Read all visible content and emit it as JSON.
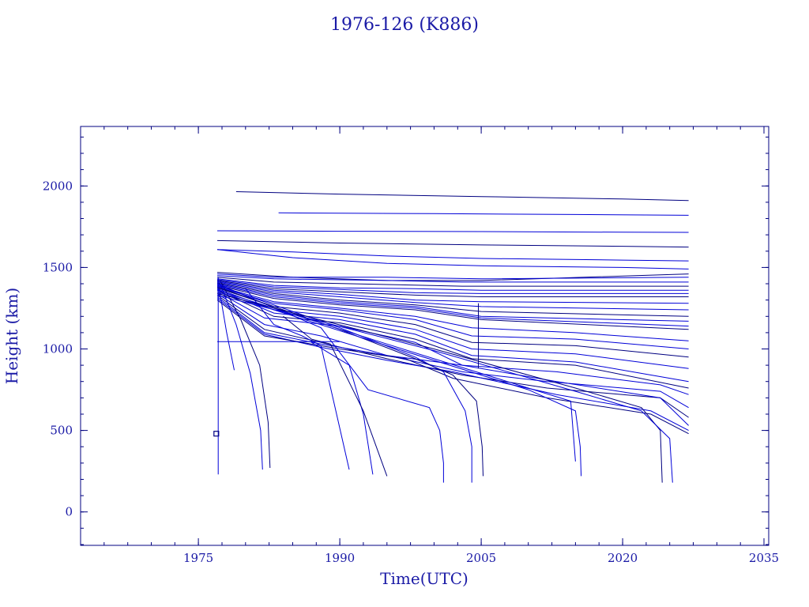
{
  "chart_data": {
    "type": "line",
    "title": "1976-126 (K886)",
    "xlabel": "Time(UTC)",
    "ylabel": "Height (km)",
    "xlim": [
      1962.5,
      2035.5
    ],
    "ylim": [
      -205,
      2365
    ],
    "x_ticks": [
      1975,
      1990,
      2005,
      2020,
      2035
    ],
    "y_ticks": [
      0,
      500,
      1000,
      1500,
      2000
    ],
    "x_minor_step": 2.5,
    "y_minor_step": 100,
    "grid": false,
    "legend": "none",
    "colors": {
      "axes": "#000080",
      "text": "#1a1aa6",
      "lines": "#0000d8",
      "lines_dark": "#000080"
    },
    "series": [
      {
        "x": [
          1979.0,
          1990.0,
          2005.0,
          2020.0,
          2027.0
        ],
        "y": [
          1965,
          1950,
          1935,
          1920,
          1910
        ]
      },
      {
        "x": [
          1983.5,
          2000.0,
          2015.0,
          2027.0
        ],
        "y": [
          1835,
          1830,
          1825,
          1820
        ]
      },
      {
        "x": [
          1977.0,
          1990.0,
          2005.0,
          2020.0,
          2027.0
        ],
        "y": [
          1725,
          1722,
          1720,
          1716,
          1715
        ]
      },
      {
        "x": [
          1977.0,
          1990.0,
          2005.0,
          2020.0,
          2027.0
        ],
        "y": [
          1665,
          1650,
          1638,
          1630,
          1625
        ]
      },
      {
        "x": [
          1977.0,
          1985.0,
          1995.0,
          2005.0,
          2020.0,
          2027.0
        ],
        "y": [
          1610,
          1595,
          1570,
          1555,
          1545,
          1540
        ]
      },
      {
        "x": [
          1977.0,
          1985.0,
          1995.0,
          2005.0,
          2020.0,
          2027.0
        ],
        "y": [
          1610,
          1560,
          1525,
          1510,
          1500,
          1490
        ]
      },
      {
        "x": [
          1977.0,
          1985.0,
          1995.0,
          2005.0,
          2027.0
        ],
        "y": [
          1470,
          1440,
          1420,
          1420,
          1460
        ]
      },
      {
        "x": [
          1977.0,
          1983.0,
          1995.0,
          2005.0,
          2027.0
        ],
        "y": [
          1460,
          1440,
          1440,
          1430,
          1440
        ]
      },
      {
        "x": [
          1977.0,
          1983.0,
          1995.0,
          2003.0,
          2027.0
        ],
        "y": [
          1450,
          1430,
          1420,
          1410,
          1410
        ]
      },
      {
        "x": [
          1977.0,
          1983.0,
          1995.0,
          2003.0,
          2027.0
        ],
        "y": [
          1440,
          1410,
          1395,
          1385,
          1385
        ]
      },
      {
        "x": [
          1977.0,
          1983.0,
          1990.0,
          1998.0,
          2005.0,
          2027.0
        ],
        "y": [
          1430,
          1390,
          1375,
          1370,
          1360,
          1360
        ]
      },
      {
        "x": [
          1977.0,
          1983.0,
          1990.0,
          1998.0,
          2005.0,
          2027.0
        ],
        "y": [
          1425,
          1380,
          1365,
          1345,
          1340,
          1340
        ]
      },
      {
        "x": [
          1977.0,
          1983.0,
          1990.0,
          1998.0,
          2005.0,
          2027.0
        ],
        "y": [
          1420,
          1370,
          1350,
          1330,
          1320,
          1320
        ]
      },
      {
        "x": [
          1977.0,
          1983.0,
          1990.0,
          1998.0,
          2005.0,
          2027.0
        ],
        "y": [
          1415,
          1360,
          1335,
          1300,
          1290,
          1280
        ]
      },
      {
        "x": [
          1977.0,
          1983.0,
          1990.0,
          1998.0,
          2005.0,
          2027.0
        ],
        "y": [
          1410,
          1350,
          1320,
          1285,
          1260,
          1240
        ]
      },
      {
        "x": [
          1977.0,
          1983.0,
          1990.0,
          1998.0,
          2005.0,
          2027.0
        ],
        "y": [
          1405,
          1340,
          1300,
          1270,
          1230,
          1200
        ]
      },
      {
        "x": [
          1977.0,
          1983.0,
          1990.0,
          1998.0,
          2005.0,
          2027.0
        ],
        "y": [
          1400,
          1330,
          1290,
          1260,
          1200,
          1170
        ]
      },
      {
        "x": [
          1977.0,
          1983.0,
          1990.0,
          1998.0,
          2005.0,
          2027.0
        ],
        "y": [
          1395,
          1320,
          1280,
          1250,
          1190,
          1140
        ]
      },
      {
        "x": [
          1977.0,
          1983.0,
          1990.0,
          1998.0,
          2005.0,
          2027.0
        ],
        "y": [
          1390,
          1310,
          1270,
          1240,
          1180,
          1120
        ]
      },
      {
        "x": [
          1977.0,
          1983.0,
          1990.0,
          1998.0,
          2004.0,
          2015.0,
          2027.0
        ],
        "y": [
          1385,
          1290,
          1250,
          1200,
          1130,
          1100,
          1050
        ]
      },
      {
        "x": [
          1977.0,
          1983.0,
          1990.0,
          1998.0,
          2004.0,
          2015.0,
          2027.0
        ],
        "y": [
          1380,
          1280,
          1240,
          1180,
          1080,
          1060,
          1000
        ]
      },
      {
        "x": [
          1977.0,
          1983.0,
          1990.0,
          1998.0,
          2004.0,
          2015.0,
          2027.0
        ],
        "y": [
          1375,
          1260,
          1220,
          1150,
          1040,
          1020,
          950
        ]
      },
      {
        "x": [
          1977.0,
          1983.0,
          1990.0,
          1998.0,
          2004.0,
          2015.0,
          2027.0
        ],
        "y": [
          1370,
          1240,
          1200,
          1120,
          1000,
          970,
          880
        ]
      },
      {
        "x": [
          1977.0,
          1983.0,
          1990.0,
          1998.0,
          2004.0,
          2015.0,
          2027.0
        ],
        "y": [
          1365,
          1220,
          1180,
          1090,
          960,
          920,
          800
        ]
      },
      {
        "x": [
          1977.0,
          1983.0,
          1990.0,
          1998.0,
          2004.0,
          2015.0,
          2027.0
        ],
        "y": [
          1360,
          1200,
          1160,
          1060,
          940,
          900,
          760
        ]
      },
      {
        "x": [
          1977.0,
          1982.0,
          1990.0,
          1998.0,
          2003.0,
          2013.0,
          2024.0,
          2027.0
        ],
        "y": [
          1350,
          1190,
          1140,
          1040,
          900,
          860,
          780,
          720
        ]
      },
      {
        "x": [
          1977.0,
          1982.0,
          1988.0,
          1995.0,
          2003.0,
          2012.0,
          2024.0,
          2027.0
        ],
        "y": [
          1340,
          1150,
          1080,
          960,
          860,
          800,
          740,
          640
        ]
      },
      {
        "x": [
          1977.0,
          1982.0,
          1988.0,
          1995.0,
          2003.0,
          2012.0,
          2024.0,
          2027.0
        ],
        "y": [
          1330,
          1120,
          1040,
          940,
          840,
          760,
          700,
          580
        ]
      },
      {
        "x": [
          1977.0,
          1982.0,
          1988.0,
          1995.0,
          2003.0,
          2013.0,
          2024.0,
          2027.0
        ],
        "y": [
          1320,
          1100,
          1030,
          960,
          900,
          800,
          700,
          530
        ]
      },
      {
        "x": [
          1977.0,
          1982.0,
          1988.0,
          1995.0,
          2002.0,
          2013.0,
          2023.0,
          2027.0
        ],
        "y": [
          1310,
          1090,
          1010,
          930,
          860,
          720,
          620,
          500
        ]
      },
      {
        "x": [
          1977.0,
          1982.0,
          1990.0,
          1997.0,
          2002.0,
          2012.0,
          2023.0,
          2027.0
        ],
        "y": [
          1300,
          1080,
          1000,
          940,
          820,
          700,
          600,
          480
        ]
      },
      {
        "x": [
          1977.2,
          1978.0,
          1978.8
        ],
        "y": [
          1370,
          1100,
          870
        ]
      },
      {
        "x": [
          1977.3,
          1979.0,
          1980.5,
          1981.6,
          1981.8
        ],
        "y": [
          1400,
          1150,
          850,
          500,
          260
        ]
      },
      {
        "x": [
          1977.4,
          1979.5,
          1981.5,
          1982.4,
          1982.6
        ],
        "y": [
          1410,
          1180,
          900,
          550,
          270
        ]
      },
      {
        "x": [
          1980.0,
          1983.0,
          1986.0,
          1988.0,
          1991.0
        ],
        "y": [
          1370,
          1150,
          1080,
          1020,
          260
        ]
      },
      {
        "x": [
          1987.0,
          1991.0,
          1992.5,
          1993.5
        ],
        "y": [
          1040,
          900,
          600,
          230
        ]
      },
      {
        "x": [
          1984.0,
          1987.0,
          1989.0,
          1992.5,
          1995.0
        ],
        "y": [
          1200,
          1060,
          1030,
          620,
          220
        ]
      },
      {
        "x": [
          1977.0,
          1988.0,
          1993.0,
          1999.5,
          2000.6,
          2001.0,
          2001.0
        ],
        "y": [
          1400,
          1130,
          750,
          640,
          500,
          300,
          180
        ]
      },
      {
        "x": [
          1977.0,
          1990.0,
          1998.0,
          2001.0,
          2003.3,
          2004.0,
          2004.0
        ],
        "y": [
          1390,
          1130,
          950,
          860,
          620,
          400,
          180
        ]
      },
      {
        "x": [
          1977.0,
          1990.0,
          1998.0,
          2002.0,
          2004.5,
          2005.1,
          2005.2
        ],
        "y": [
          1380,
          1120,
          940,
          840,
          680,
          400,
          220
        ]
      },
      {
        "x": [
          1977.0,
          1995.0,
          2010.0,
          2014.5,
          2015.0
        ],
        "y": [
          1360,
          1030,
          760,
          680,
          310
        ]
      },
      {
        "x": [
          1977.0,
          1995.0,
          2010.0,
          2015.0,
          2015.5,
          2015.6
        ],
        "y": [
          1350,
          1020,
          750,
          620,
          400,
          220
        ]
      },
      {
        "x": [
          1977.0,
          2000.0,
          2015.0,
          2022.0,
          2024.0,
          2024.2
        ],
        "y": [
          1340,
          1000,
          760,
          640,
          500,
          180
        ]
      },
      {
        "x": [
          1977.0,
          2000.0,
          2015.0,
          2022.0,
          2025.0,
          2025.3
        ],
        "y": [
          1330,
          990,
          740,
          620,
          450,
          180
        ]
      },
      {
        "x": [
          1977.0,
          1990.0
        ],
        "y": [
          1045,
          1045
        ]
      },
      {
        "x": [
          2004.7,
          2004.7
        ],
        "y": [
          880,
          1280
        ]
      },
      {
        "x": [
          1977.1,
          1977.1,
          1977.1,
          1977.1
        ],
        "y": [
          230,
          560,
          800,
          1440
        ]
      }
    ],
    "marker": {
      "x": 1976.9,
      "y": 480,
      "symbol": "square"
    }
  }
}
